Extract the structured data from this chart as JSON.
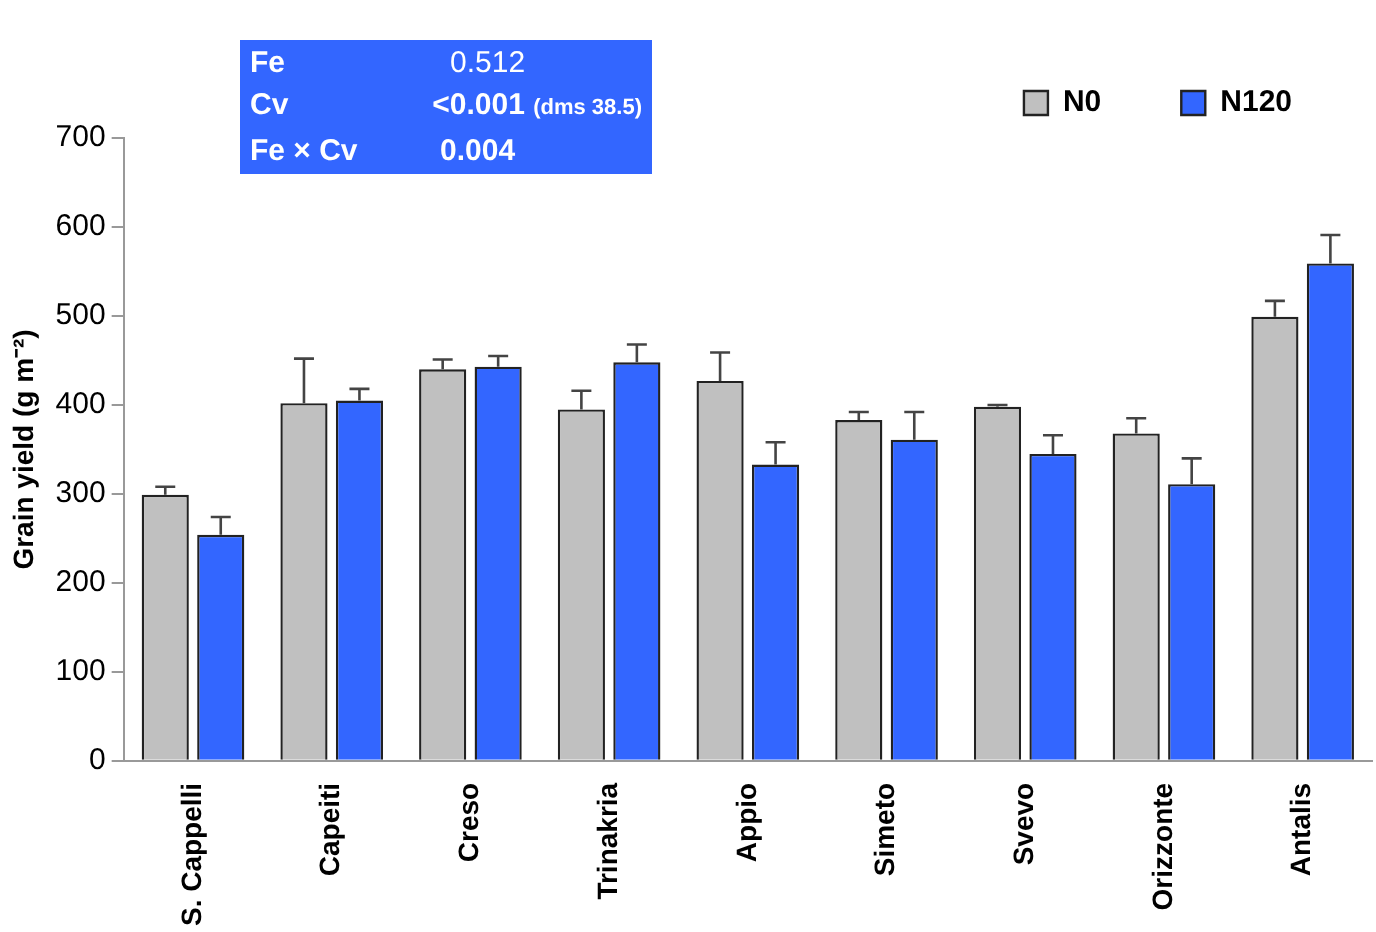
{
  "chart_data": {
    "type": "bar",
    "ylabel": "Grain yield (g m⁻²)",
    "categories": [
      "S. Cappelli",
      "Capeiti",
      "Creso",
      "Trinakria",
      "Appio",
      "Simeto",
      "Svevo",
      "Orizzonte",
      "Antalis"
    ],
    "series": [
      {
        "name": "N0",
        "color": "#c0c0c0",
        "values": [
          299,
          402,
          440,
          395,
          427,
          383,
          398,
          368,
          499
        ],
        "errors": [
          [
            299,
            308
          ],
          [
            402,
            452
          ],
          [
            440,
            451
          ],
          [
            395,
            416
          ],
          [
            427,
            459
          ],
          [
            383,
            392
          ],
          [
            398,
            400
          ],
          [
            368,
            385
          ],
          [
            499,
            517
          ]
        ]
      },
      {
        "name": "N120",
        "color": "#3366ff",
        "values": [
          254,
          405,
          443,
          448,
          333,
          361,
          345,
          311,
          559
        ],
        "errors": [
          [
            254,
            274
          ],
          [
            405,
            418
          ],
          [
            443,
            455
          ],
          [
            448,
            468
          ],
          [
            333,
            358
          ],
          [
            361,
            392
          ],
          [
            345,
            366
          ],
          [
            311,
            340
          ],
          [
            559,
            591
          ]
        ]
      }
    ],
    "ylim": [
      0,
      700
    ],
    "yticks": [
      0,
      100,
      200,
      300,
      400,
      500,
      600,
      700
    ],
    "grid": false,
    "legend": "top right",
    "annotations": [
      "Fe",
      "0.512",
      "Cv",
      "<0.001",
      "(dms 38.5)",
      "Fe × Cv",
      "0.004"
    ]
  }
}
